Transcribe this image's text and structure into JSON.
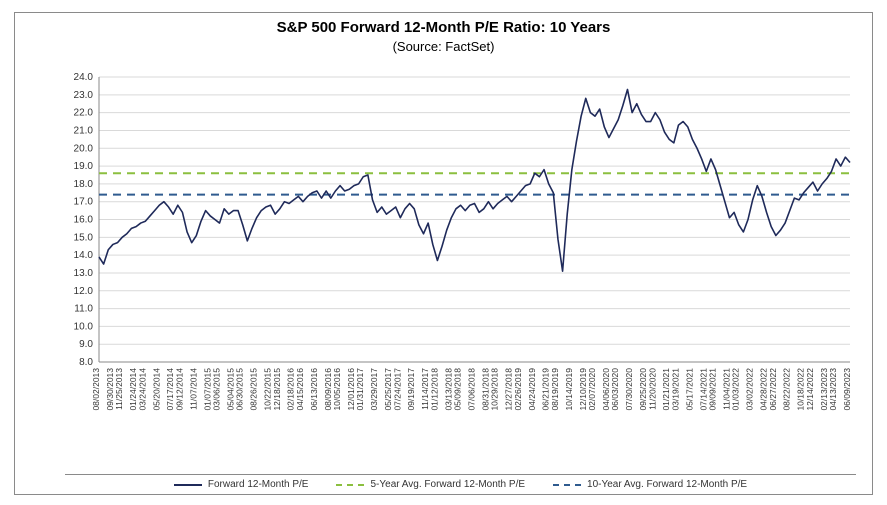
{
  "chart": {
    "type": "line",
    "title": "S&P 500 Forward 12-Month P/E Ratio: 10 Years",
    "subtitle": "(Source: FactSet)",
    "title_fontsize": 15,
    "subtitle_fontsize": 13,
    "background_color": "#ffffff",
    "border_color": "#8a8a8a",
    "grid_color": "#d9d9d9",
    "axis_color": "#8a8a8a",
    "tick_font_color": "#333333",
    "ylim": [
      8.0,
      24.0
    ],
    "ytick_step": 1.0,
    "ytick_decimals": 1,
    "x_categories": [
      "08/02/2013",
      "09/30/2013",
      "11/25/2013",
      "01/24/2014",
      "03/24/2014",
      "05/20/2014",
      "07/17/2014",
      "09/12/2014",
      "11/07/2014",
      "01/07/2015",
      "03/06/2015",
      "05/04/2015",
      "06/30/2015",
      "08/26/2015",
      "10/22/2015",
      "12/18/2015",
      "02/18/2016",
      "04/15/2016",
      "06/13/2016",
      "08/09/2016",
      "10/05/2016",
      "12/01/2016",
      "01/31/2017",
      "03/29/2017",
      "05/25/2017",
      "07/24/2017",
      "09/19/2017",
      "11/14/2017",
      "01/12/2018",
      "03/13/2018",
      "05/09/2018",
      "07/06/2018",
      "08/31/2018",
      "10/29/2018",
      "12/27/2018",
      "02/26/2019",
      "04/24/2019",
      "06/21/2019",
      "08/19/2019",
      "10/14/2019",
      "12/10/2019",
      "02/07/2020",
      "04/06/2020",
      "06/03/2020",
      "07/30/2020",
      "09/25/2020",
      "11/20/2020",
      "01/21/2021",
      "03/19/2021",
      "05/17/2021",
      "07/14/2021",
      "09/09/2021",
      "11/04/2021",
      "01/03/2022",
      "03/02/2022",
      "04/28/2022",
      "06/27/2022",
      "08/22/2022",
      "10/18/2022",
      "12/14/2022",
      "02/13/2023",
      "04/13/2023",
      "06/09/2023"
    ],
    "series": {
      "name": "Forward 12-Month P/E",
      "color": "#1f2a5a",
      "line_width": 1.6,
      "values": [
        13.9,
        13.5,
        14.3,
        14.6,
        14.7,
        15.0,
        15.2,
        15.5,
        15.6,
        15.8,
        15.9,
        16.2,
        16.5,
        16.8,
        17.0,
        16.7,
        16.3,
        16.8,
        16.4,
        15.3,
        14.7,
        15.1,
        15.9,
        16.5,
        16.2,
        16.0,
        15.8,
        16.6,
        16.3,
        16.5,
        16.5,
        15.7,
        14.8,
        15.5,
        16.1,
        16.5,
        16.7,
        16.8,
        16.3,
        16.6,
        17.0,
        16.9,
        17.1,
        17.3,
        17.0,
        17.3,
        17.5,
        17.6,
        17.2,
        17.6,
        17.2,
        17.6,
        17.9,
        17.6,
        17.7,
        17.9,
        18.0,
        18.4,
        18.5,
        17.1,
        16.4,
        16.7,
        16.3,
        16.5,
        16.7,
        16.1,
        16.6,
        16.9,
        16.6,
        15.7,
        15.2,
        15.8,
        14.6,
        13.7,
        14.5,
        15.4,
        16.1,
        16.6,
        16.8,
        16.5,
        16.8,
        16.9,
        16.4,
        16.6,
        17.0,
        16.6,
        16.9,
        17.1,
        17.3,
        17.0,
        17.3,
        17.6,
        17.9,
        18.0,
        18.6,
        18.4,
        18.8,
        18.0,
        17.5,
        14.9,
        13.1,
        16.3,
        18.8,
        20.4,
        21.8,
        22.8,
        22.0,
        21.8,
        22.2,
        21.2,
        20.6,
        21.1,
        21.6,
        22.4,
        23.3,
        22.0,
        22.5,
        21.9,
        21.5,
        21.5,
        22.0,
        21.6,
        20.9,
        20.5,
        20.3,
        21.3,
        21.5,
        21.2,
        20.5,
        20.0,
        19.4,
        18.7,
        19.4,
        18.8,
        17.9,
        17.0,
        16.1,
        16.4,
        15.7,
        15.3,
        16.0,
        17.1,
        17.9,
        17.3,
        16.4,
        15.6,
        15.1,
        15.4,
        15.8,
        16.5,
        17.2,
        17.1,
        17.5,
        17.8,
        18.1,
        17.6,
        18.0,
        18.3,
        18.7,
        19.4,
        19.0,
        19.5,
        19.2
      ]
    },
    "reference_lines": [
      {
        "name": "5-Year Avg. Forward 12-Month P/E",
        "value": 18.6,
        "color": "#8bbf3f",
        "dash": true,
        "line_width": 2
      },
      {
        "name": "10-Year Avg. Forward 12-Month P/E",
        "value": 17.4,
        "color": "#2f5b8f",
        "dash": true,
        "line_width": 2
      }
    ],
    "legend": {
      "items": [
        {
          "label": "Forward 12-Month P/E",
          "color": "#1f2a5a",
          "dash": false
        },
        {
          "label": "5-Year Avg. Forward 12-Month P/E",
          "color": "#8bbf3f",
          "dash": true
        },
        {
          "label": "10-Year Avg. Forward 12-Month P/E",
          "color": "#2f5b8f",
          "dash": true
        }
      ]
    }
  }
}
